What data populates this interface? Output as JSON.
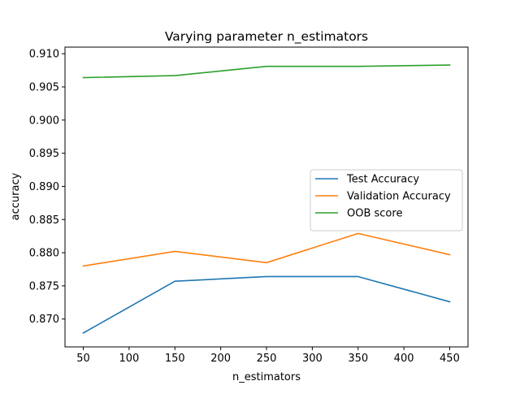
{
  "chart_data": {
    "type": "line",
    "title": "Varying parameter n_estimators",
    "xlabel": "n_estimators",
    "ylabel": "accuracy",
    "x": [
      50,
      150,
      250,
      350,
      450
    ],
    "xticks": [
      50,
      100,
      150,
      200,
      250,
      300,
      350,
      400,
      450
    ],
    "yticks": [
      0.87,
      0.875,
      0.88,
      0.885,
      0.89,
      0.895,
      0.9,
      0.905,
      0.91
    ],
    "ytick_labels": [
      "0.870",
      "0.875",
      "0.880",
      "0.885",
      "0.890",
      "0.895",
      "0.900",
      "0.905",
      "0.910"
    ],
    "xlim": [
      30,
      470
    ],
    "ylim": [
      0.8658,
      0.911
    ],
    "grid": false,
    "legend_position": "center-right",
    "series": [
      {
        "name": "Test Accuracy",
        "color": "#1f77b4",
        "values": [
          0.8679,
          0.8757,
          0.8764,
          0.8764,
          0.8726
        ]
      },
      {
        "name": "Validation Accuracy",
        "color": "#ff7f0e",
        "values": [
          0.878,
          0.8802,
          0.8785,
          0.8829,
          0.8797
        ]
      },
      {
        "name": "OOB score",
        "color": "#2ca02c",
        "values": [
          0.9064,
          0.9067,
          0.9081,
          0.9081,
          0.9083
        ]
      }
    ]
  }
}
